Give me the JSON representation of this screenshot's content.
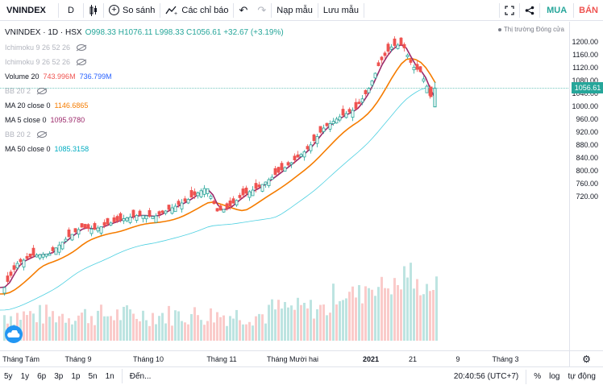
{
  "toolbar": {
    "symbol": "VNINDEX",
    "interval": "D",
    "compare_label": "So sánh",
    "indicators_label": "Các chỉ báo",
    "load_layout": "Nạp mẫu",
    "save_layout": "Lưu mẫu",
    "buy_label": "MUA",
    "sell_label": "BÁN"
  },
  "legend": {
    "main_title": "VNINDEX · 1D · HSX",
    "ohlc": "O998.33 H1076.11 L998.33 C1056.61 +32.67 (+3.19%)",
    "ichimoku1": "Ichimoku 9 26 52 26",
    "ichimoku2": "Ichimoku 9 26 52 26",
    "volume_label": "Volume 20",
    "volume_v1": "743.996M",
    "volume_v2": "736.799M",
    "bb1": "BB 20 2",
    "ma20_label": "MA 20 close 0",
    "ma20_value": "1146.6865",
    "ma5_label": "MA 5 close 0",
    "ma5_value": "1095.9780",
    "bb2": "BB 20 2",
    "ma50_label": "MA 50 close 0",
    "ma50_value": "1085.3158"
  },
  "market_status": "Thị trường Đóng cửa",
  "price_tag": "1056.61",
  "colors": {
    "up": "#26a69a",
    "down": "#ef5350",
    "ma5": "#9c2a6b",
    "ma20": "#f57c00",
    "ma50": "#4dd0e1"
  },
  "chart_data": {
    "type": "candlestick",
    "yaxis_ticks": [
      1200.0,
      1160.0,
      1120.0,
      1080.0,
      1040.0,
      1000.0,
      960.0,
      920.0,
      880.0,
      840.0,
      800.0,
      760.0,
      720.0
    ],
    "ylim": [
      695,
      1210
    ],
    "last_close": 1056.61,
    "x_ticks": [
      {
        "label": "Tháng Tám",
        "bold": false
      },
      {
        "label": "Tháng 9",
        "bold": false
      },
      {
        "label": "Tháng 10",
        "bold": false
      },
      {
        "label": "Tháng 11",
        "bold": false
      },
      {
        "label": "Tháng Mười hai",
        "bold": false
      },
      {
        "label": "2021",
        "bold": true
      },
      {
        "label": "21",
        "bold": false
      },
      {
        "label": "9",
        "bold": false
      },
      {
        "label": "Tháng 3",
        "bold": false
      }
    ]
  },
  "bottom_bar": {
    "ranges": [
      "5y",
      "1y",
      "6p",
      "3p",
      "1p",
      "5n",
      "1n"
    ],
    "goto": "Đến...",
    "time": "20:40:56 (UTC+7)",
    "percent": "%",
    "log": "log",
    "auto": "tự động"
  }
}
